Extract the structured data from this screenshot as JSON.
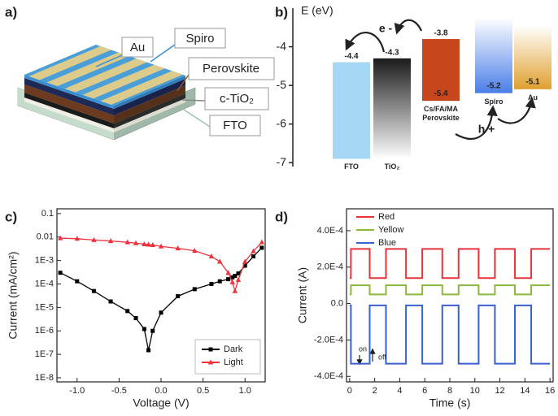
{
  "schematic": {
    "label": "a)",
    "layers": [
      "Au",
      "Spiro",
      "Perovskite",
      "c-TiO₂",
      "FTO"
    ]
  },
  "chart_data": [
    {
      "type": "energy-levels",
      "label": "b)",
      "y_label": "E (eV)",
      "categories": [
        "FTO",
        "TiO₂",
        "Cs/FA/MA Perovskite",
        "Spiro",
        "Au"
      ],
      "top": [
        -4.4,
        -4.3,
        -3.8,
        -3.25,
        -3.45
      ],
      "bottom": [
        -6.9,
        -6.9,
        -5.4,
        -5.2,
        -5.1
      ],
      "label_top": [
        true,
        true,
        true,
        false,
        false
      ],
      "label_bottom": [
        false,
        false,
        true,
        true,
        true
      ],
      "colors": [
        "#a6d8f5",
        "#1a1a1a",
        "#c8461c",
        "#4a7ee8",
        "#e0a030"
      ],
      "fade": [
        "none",
        "to-bottom",
        "none",
        "to-top",
        "to-top"
      ],
      "ylim": [
        -7.1,
        -3.0
      ],
      "yticks": [
        -4,
        -5,
        -6,
        -7
      ],
      "annotations": [
        "e -",
        "h +"
      ]
    },
    {
      "type": "line",
      "label": "c)",
      "x_label": "Voltage (V)",
      "y_label": "Current (mA/cm²)",
      "log_y": true,
      "x": [
        -1.2,
        -1.0,
        -0.8,
        -0.6,
        -0.4,
        -0.3,
        -0.2,
        -0.15,
        -0.1,
        0,
        0.2,
        0.4,
        0.6,
        0.7,
        0.8,
        0.85,
        0.88,
        0.92,
        1.0,
        1.1,
        1.2
      ],
      "series": [
        {
          "name": "Dark",
          "color": "#000000",
          "marker": "square",
          "values": [
            0.0003,
            0.00013,
            5e-05,
            1.8e-05,
            7e-06,
            3.5e-06,
            1.2e-06,
            1.5e-07,
            1e-06,
            6e-06,
            3e-05,
            6e-05,
            0.0001,
            0.00013,
            0.00016,
            0.00019,
            0.00022,
            0.00028,
            0.0006,
            0.0015,
            0.0035
          ]
        },
        {
          "name": "Light",
          "color": "#f0303a",
          "marker": "triangle",
          "values": [
            0.009,
            0.0085,
            0.0075,
            0.0068,
            0.006,
            0.0055,
            0.005,
            0.0048,
            0.0046,
            0.004,
            0.0033,
            0.0026,
            0.0015,
            0.0009,
            0.0003,
            0.00012,
            5e-05,
            0.00015,
            0.0009,
            0.0025,
            0.006
          ]
        }
      ],
      "xlim": [
        -1.24,
        1.24
      ],
      "xticks": [
        {
          "value": -1.0,
          "label": "-1.0"
        },
        -0.5,
        {
          "value": 0,
          "label": "0.0"
        },
        0.5,
        {
          "value": 1.0,
          "label": "1.0"
        }
      ],
      "ylim": [
        6.7e-09,
        0.16
      ],
      "yticks": [
        {
          "value": 1e-08,
          "label": "1E-8"
        },
        {
          "value": 1e-07,
          "label": "1E-7"
        },
        {
          "value": 1e-06,
          "label": "1E-6"
        },
        {
          "value": 1e-05,
          "label": "1E-5"
        },
        {
          "value": 0.0001,
          "label": "1E-4"
        },
        {
          "value": 0.001,
          "label": "1E-3"
        },
        0.01,
        0.1
      ],
      "legend": "lower right"
    },
    {
      "type": "line",
      "label": "d)",
      "x_label": "Time (s)",
      "y_label": "Current (A)",
      "log_y": false,
      "x": [
        0,
        0.1,
        0.1,
        1.6,
        1.6,
        2.9,
        2.9,
        4.5,
        4.5,
        5.8,
        5.8,
        7.4,
        7.4,
        8.7,
        8.7,
        10.3,
        10.3,
        11.6,
        11.6,
        13.2,
        13.2,
        14.5,
        14.5,
        16
      ],
      "series": [
        {
          "name": "Red",
          "color": "#e8323c",
          "values": [
            0.00014,
            0.00014,
            0.0003,
            0.0003,
            0.00014,
            0.00014,
            0.0003,
            0.0003,
            0.00014,
            0.00014,
            0.0003,
            0.0003,
            0.00014,
            0.00014,
            0.0003,
            0.0003,
            0.00014,
            0.00014,
            0.0003,
            0.0003,
            0.00014,
            0.00014,
            0.0003,
            0.0003
          ]
        },
        {
          "name": "Yellow",
          "color": "#8db83c",
          "values": [
            5e-05,
            5e-05,
            0.0001,
            0.0001,
            5e-05,
            5e-05,
            0.0001,
            0.0001,
            5e-05,
            5e-05,
            0.0001,
            0.0001,
            5e-05,
            5e-05,
            0.0001,
            0.0001,
            5e-05,
            5e-05,
            0.0001,
            0.0001,
            5e-05,
            5e-05,
            0.0001,
            0.0001
          ]
        },
        {
          "name": "Blue",
          "color": "#3a5fcf",
          "values": [
            -1e-05,
            -1e-05,
            -0.00033,
            -0.00033,
            -1e-05,
            -1e-05,
            -0.00033,
            -0.00033,
            -1e-05,
            -1e-05,
            -0.00033,
            -0.00033,
            -1e-05,
            -1e-05,
            -0.00033,
            -0.00033,
            -1e-05,
            -1e-05,
            -0.00033,
            -0.00033,
            -1e-05,
            -1e-05,
            -0.00033,
            -0.00033
          ]
        }
      ],
      "xlim": [
        -0.25,
        16.25
      ],
      "xticks": [
        0,
        2,
        4,
        6,
        8,
        10,
        12,
        14,
        16
      ],
      "ylim": [
        -0.00043,
        0.00052
      ],
      "yticks": [
        {
          "value": -0.0004,
          "label": "-4.0E-4"
        },
        {
          "value": -0.0002,
          "label": "-2.0E-4"
        },
        {
          "value": 0,
          "label": "0.0"
        },
        {
          "value": 0.0002,
          "label": "2.0E-4"
        },
        {
          "value": 0.0004,
          "label": "4.0E-4"
        }
      ],
      "legend": "upper left",
      "annotations": [
        "on",
        "off"
      ]
    }
  ]
}
